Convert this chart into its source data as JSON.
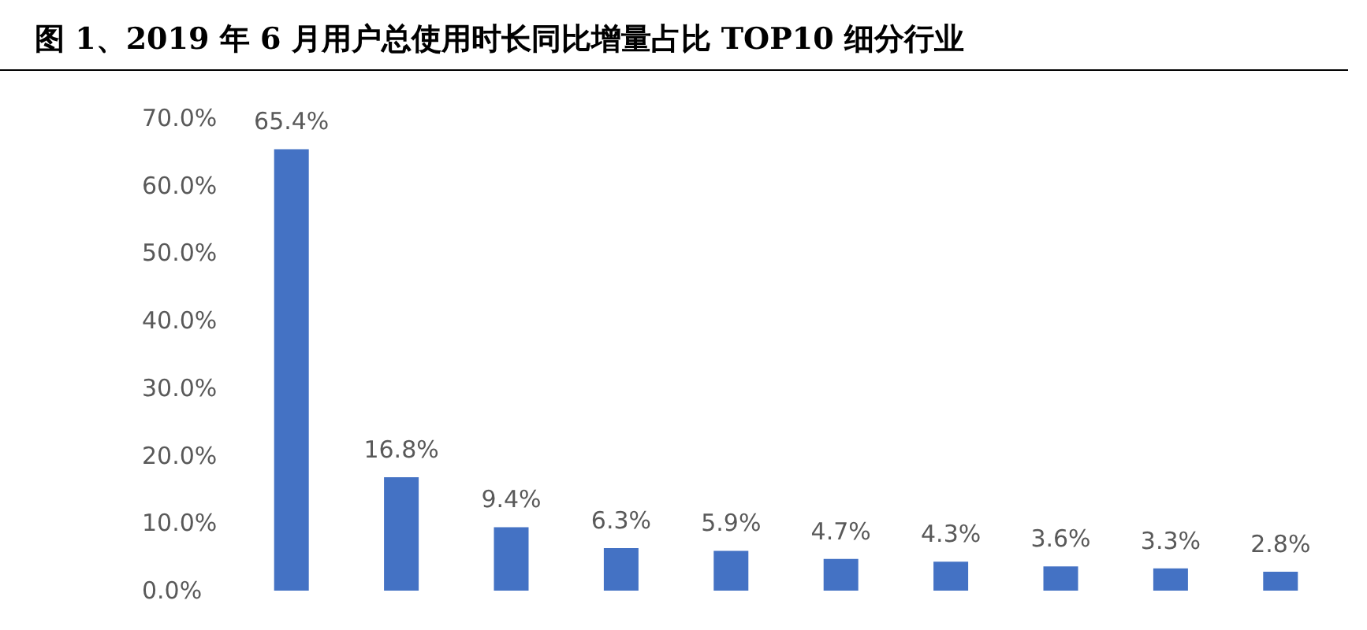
{
  "chart_data": {
    "type": "bar",
    "title": "图 1、2019 年 6 月用户总使用时长同比增量占比 TOP10 细分行业",
    "categories": [
      null,
      null,
      null,
      null,
      null,
      null,
      null,
      null,
      null,
      null
    ],
    "values": [
      65.4,
      16.8,
      9.4,
      6.3,
      5.9,
      4.7,
      4.3,
      3.6,
      3.3,
      2.8
    ],
    "value_labels": [
      "65.4%",
      "16.8%",
      "9.4%",
      "6.3%",
      "5.9%",
      "4.7%",
      "4.3%",
      "3.6%",
      "3.3%",
      "2.8%"
    ],
    "color": "#4472c4",
    "ylim": [
      0,
      70
    ],
    "yticks": [
      {
        "value": 0,
        "label": "0.0%"
      },
      {
        "value": 10,
        "label": "10.0%"
      },
      {
        "value": 20,
        "label": "20.0%"
      },
      {
        "value": 30,
        "label": "30.0%"
      },
      {
        "value": 40,
        "label": "40.0%"
      },
      {
        "value": 50,
        "label": "50.0%"
      },
      {
        "value": 60,
        "label": "60.0%"
      },
      {
        "value": 70,
        "label": "70.0%"
      }
    ],
    "grid": false
  }
}
